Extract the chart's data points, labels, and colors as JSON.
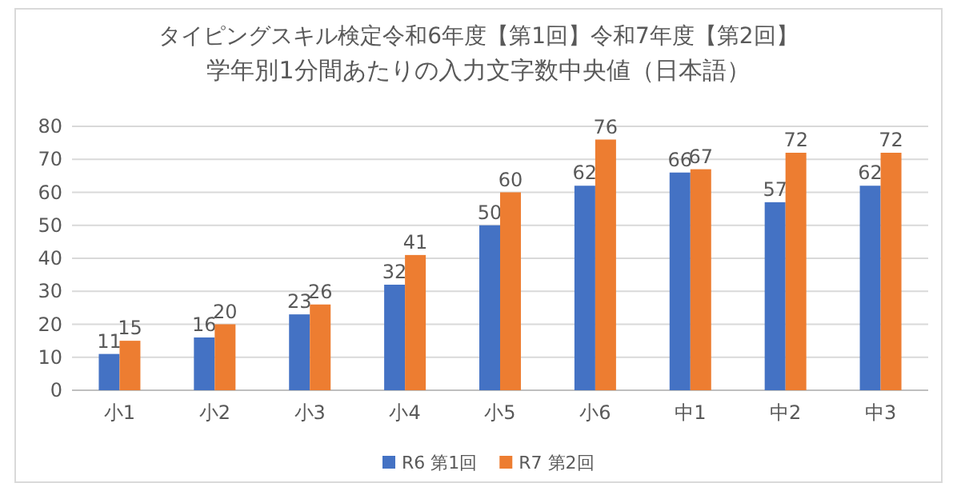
{
  "chart_data": {
    "type": "bar",
    "title": "タイピングスキル検定令和6年度【第1回】令和7年度【第2回】",
    "subtitle": "学年別1分間あたりの入力文字数中央値（日本語）",
    "categories": [
      "小1",
      "小2",
      "小3",
      "小4",
      "小5",
      "小6",
      "中1",
      "中2",
      "中3"
    ],
    "series": [
      {
        "name": "R6 第1回",
        "color": "#4472c4",
        "values": [
          11,
          16,
          23,
          32,
          50,
          62,
          66,
          57,
          62
        ]
      },
      {
        "name": "R7 第2回",
        "color": "#ed7d31",
        "values": [
          15,
          20,
          26,
          41,
          60,
          76,
          67,
          72,
          72
        ]
      }
    ],
    "ylim": [
      0,
      80
    ],
    "yticks": [
      0,
      10,
      20,
      30,
      40,
      50,
      60,
      70,
      80
    ],
    "grid": "y",
    "legend": "bottom",
    "data_labels": true
  }
}
